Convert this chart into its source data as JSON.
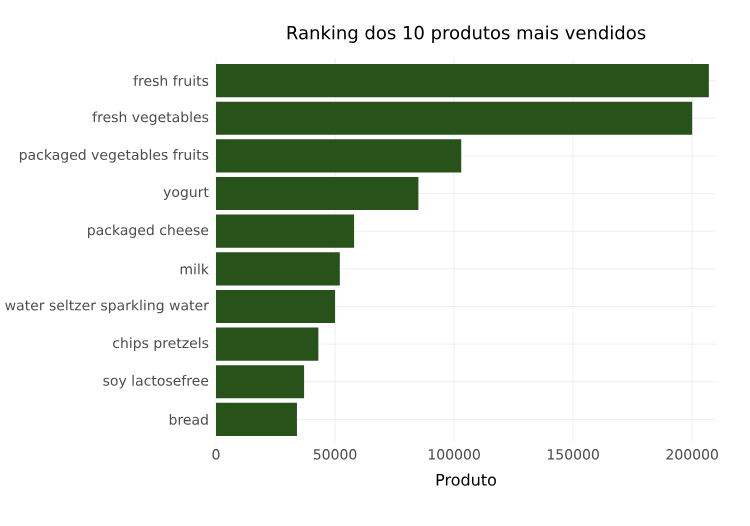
{
  "chart_data": {
    "type": "bar",
    "orientation": "horizontal",
    "title": "Ranking dos 10 produtos mais vendidos",
    "xlabel": "Produto",
    "categories": [
      "fresh fruits",
      "fresh vegetables",
      "packaged vegetables fruits",
      "yogurt",
      "packaged cheese",
      "milk",
      "water seltzer sparkling water",
      "chips pretzels",
      "soy lactosefree",
      "bread"
    ],
    "values": [
      207000,
      200000,
      103000,
      85000,
      58000,
      52000,
      50000,
      43000,
      37000,
      34000
    ],
    "color": "#27521a",
    "xlim": [
      0,
      210000
    ],
    "xticks": [
      0,
      50000,
      100000,
      150000,
      200000
    ],
    "grid": true
  }
}
